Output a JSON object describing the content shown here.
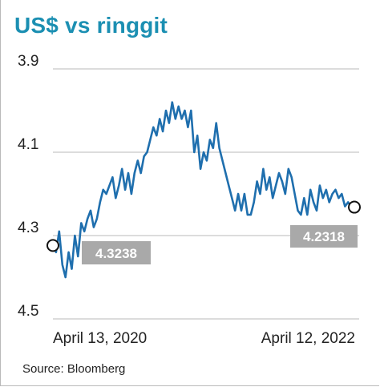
{
  "title": "US$ vs ringgit",
  "source": "Source: Bloomberg",
  "colors": {
    "line": "#1f6fae",
    "title": "#1b8fb2",
    "grid": "#b9b9b9",
    "badge": "#a9a9a9"
  },
  "chart_data": {
    "type": "line",
    "title": "US$ vs ringgit",
    "xlabel": "",
    "ylabel": "",
    "ylim": [
      3.9,
      4.5
    ],
    "y_inverted": true,
    "grid": "horizontal",
    "yticks": [
      "3.9",
      "4.1",
      "4.3",
      "4.5"
    ],
    "x_labels": [
      "April 13, 2020",
      "April 12, 2022"
    ],
    "x_range": [
      "2020-04-13",
      "2022-04-12"
    ],
    "series": [
      {
        "values": [
          4.32,
          4.34,
          4.29,
          4.37,
          4.4,
          4.34,
          4.38,
          4.3,
          4.35,
          4.27,
          4.29,
          4.26,
          4.24,
          4.28,
          4.26,
          4.22,
          4.19,
          4.2,
          4.18,
          4.16,
          4.21,
          4.18,
          4.14,
          4.19,
          4.15,
          4.2,
          4.15,
          4.12,
          4.15,
          4.11,
          4.1,
          4.07,
          4.04,
          4.06,
          4.02,
          4.05,
          4.0,
          4.03,
          3.98,
          4.02,
          3.99,
          4.02,
          4.0,
          4.04,
          4.0,
          4.1,
          4.06,
          4.14,
          4.1,
          4.12,
          4.07,
          4.09,
          4.03,
          4.09,
          4.12,
          4.15,
          4.18,
          4.21,
          4.24,
          4.2,
          4.24,
          4.2,
          4.25,
          4.25,
          4.22,
          4.17,
          4.2,
          4.14,
          4.19,
          4.16,
          4.21,
          4.18,
          4.15,
          4.17,
          4.2,
          4.14,
          4.16,
          4.2,
          4.24,
          4.25,
          4.21,
          4.25,
          4.19,
          4.22,
          4.24,
          4.18,
          4.21,
          4.19,
          4.22,
          4.2,
          4.19,
          4.21,
          4.2,
          4.23,
          4.22,
          4.23,
          4.2318
        ]
      }
    ],
    "annotations": [
      {
        "label": "4.3238",
        "value": 4.3238,
        "at": "start"
      },
      {
        "label": "4.2318",
        "value": 4.2318,
        "at": "end"
      }
    ]
  }
}
